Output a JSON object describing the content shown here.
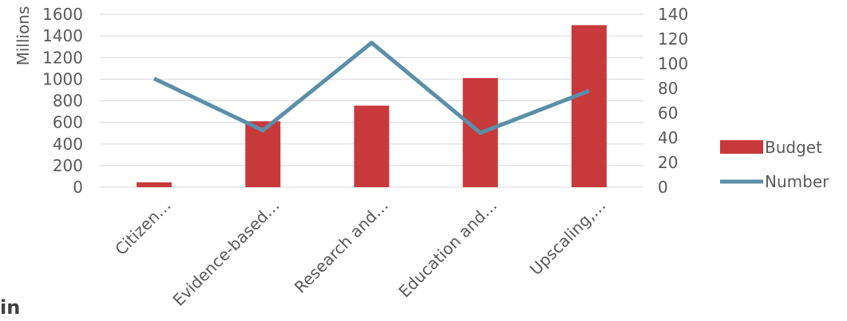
{
  "chart_data": {
    "type": "bar",
    "categories": [
      "Citizen…",
      "Evidence-based…",
      "Research and…",
      "Education and…",
      "Upscaling,…"
    ],
    "series": [
      {
        "name": "Budget",
        "type": "bar",
        "axis": "left",
        "values": [
          45,
          610,
          755,
          1010,
          1500
        ]
      },
      {
        "name": "Number",
        "type": "line",
        "axis": "right",
        "values": [
          88,
          46,
          117,
          44,
          78
        ]
      }
    ],
    "ylabel": "Millions",
    "ylim": [
      0,
      1600
    ],
    "y_ticks": [
      "0",
      "200",
      "400",
      "600",
      "800",
      "1000",
      "1200",
      "1400",
      "1600"
    ],
    "y2lim": [
      0,
      140
    ],
    "y2_ticks": [
      "0",
      "20",
      "40",
      "60",
      "80",
      "100",
      "120",
      "140"
    ],
    "grid": true,
    "legend_position": "right",
    "colors": {
      "Budget": "#c8393b",
      "Number": "#5b8fa8",
      "grid": "#d9d9d9",
      "text": "#595959"
    }
  },
  "footer_text": "in"
}
